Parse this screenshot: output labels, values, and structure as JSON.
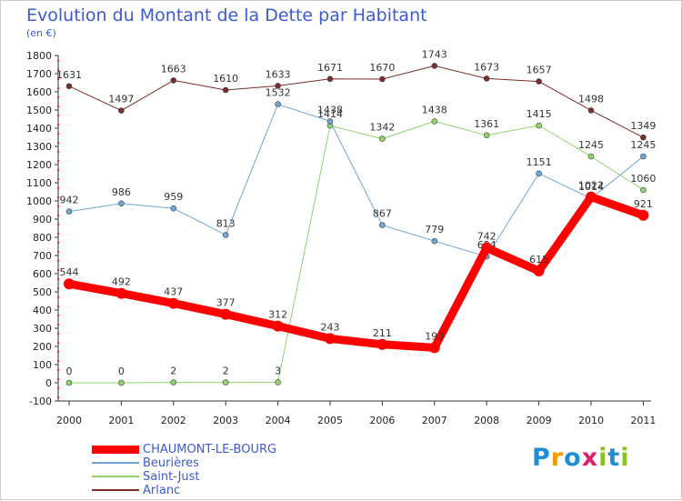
{
  "header": {
    "title": "Evolution du Montant de la Dette par Habitant",
    "unit": "(en €)"
  },
  "brand": {
    "text": "Proxiti",
    "colors": [
      "#1e8fd6",
      "#f59a00",
      "#1e8fd6",
      "#e01f6e",
      "#8cc21f",
      "#1e8fd6",
      "#8cc21f"
    ]
  },
  "chart_data": {
    "type": "line",
    "title": "Evolution du Montant de la Dette par Habitant",
    "ylabel": "(en €)",
    "xlabel": "",
    "categories": [
      "2000",
      "2001",
      "2002",
      "2003",
      "2004",
      "2005",
      "2006",
      "2007",
      "2008",
      "2009",
      "2010",
      "2011"
    ],
    "ylim": [
      -100,
      1800
    ],
    "yticks": [
      -100,
      0,
      100,
      200,
      300,
      400,
      500,
      600,
      700,
      800,
      900,
      1000,
      1100,
      1200,
      1300,
      1400,
      1500,
      1600,
      1700,
      1800
    ],
    "grid": false,
    "legend": "bottom-left",
    "series": [
      {
        "name": "Arlanc",
        "color": "#7b2c2c",
        "width": 1,
        "values": [
          1631,
          1497,
          1663,
          1610,
          1633,
          1671,
          1670,
          1743,
          1673,
          1657,
          1498,
          1349
        ]
      },
      {
        "name": "Saint-Just",
        "color": "#8fd36a",
        "width": 1,
        "values": [
          0,
          0,
          2,
          2,
          3,
          1414,
          1342,
          1438,
          1361,
          1415,
          1245,
          1060
        ]
      },
      {
        "name": "Beurières",
        "color": "#6ea7d6",
        "width": 1,
        "values": [
          942,
          986,
          959,
          813,
          1532,
          1438,
          867,
          779,
          694,
          1151,
          1014,
          1245
        ]
      },
      {
        "name": "CHAUMONT-LE-BOURG",
        "color": "#ff0000",
        "width": 9,
        "values": [
          544,
          492,
          437,
          377,
          312,
          243,
          211,
          193,
          742,
          615,
          1022,
          921
        ]
      }
    ]
  }
}
